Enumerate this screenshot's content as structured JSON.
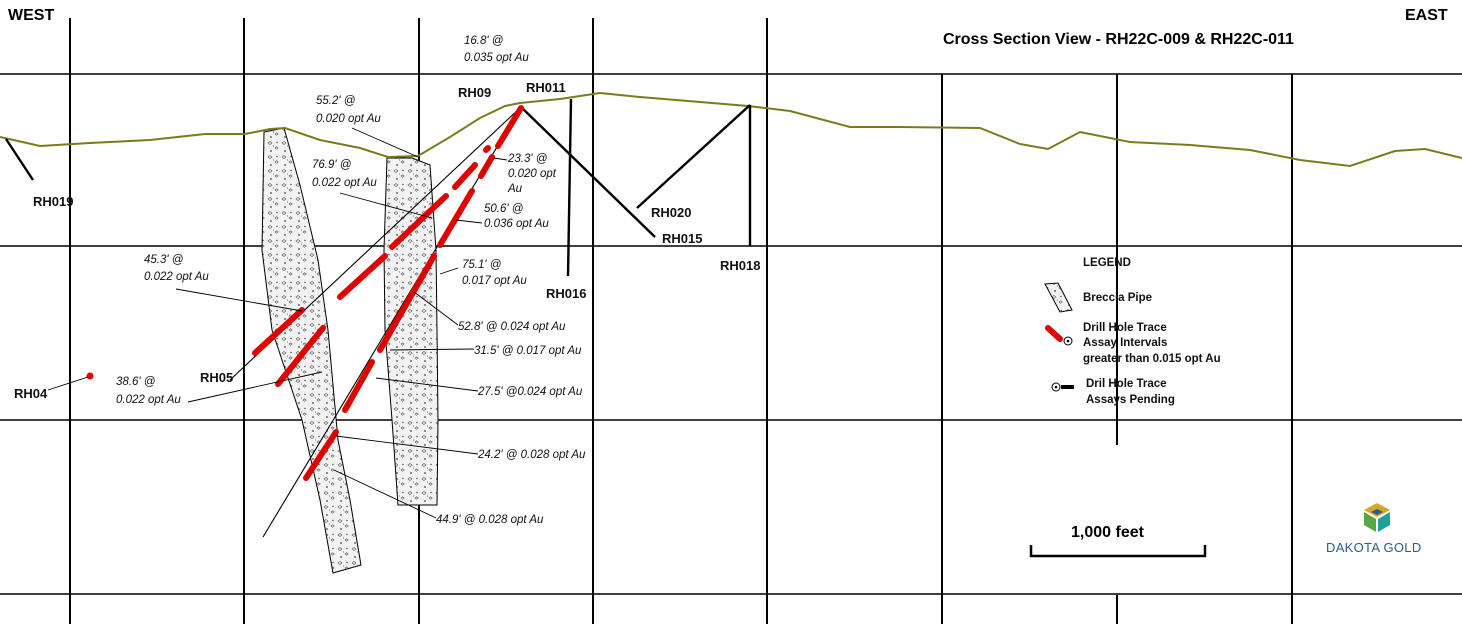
{
  "header": {
    "west": "WEST",
    "east": "EAST",
    "title": "Cross Section View - RH22C-009 & RH22C-011"
  },
  "holes": {
    "rh019": "RH019",
    "rh09": "RH09",
    "rh011": "RH011",
    "rh016": "RH016",
    "rh020": "RH020",
    "rh015": "RH015",
    "rh018": "RH018",
    "rh05": "RH05",
    "rh04": "RH04"
  },
  "intervals": {
    "i1": {
      "l1": "16.8' @",
      "l2": "0.035 opt Au"
    },
    "i2": {
      "l1": "55.2' @",
      "l2": "0.020 opt Au"
    },
    "i3": {
      "l1": "76.9' @",
      "l2": "0.022 opt Au"
    },
    "i4": {
      "l1": "23.3' @",
      "l2": "0.020 opt",
      "l3": "Au"
    },
    "i5": {
      "l1": "50.6' @",
      "l2": "0.036 opt Au"
    },
    "i6": {
      "l1": "45.3' @",
      "l2": "0.022 opt Au"
    },
    "i7": {
      "l1": "75.1' @",
      "l2": "0.017 opt Au"
    },
    "i8": "52.8' @ 0.024 opt Au",
    "i9": "31.5' @ 0.017 opt Au",
    "i10": {
      "l1": "38.6' @",
      "l2": "0.022 opt Au"
    },
    "i11": "27.5' @0.024 opt Au",
    "i12": "24.2' @ 0.028 opt Au",
    "i13": "44.9' @ 0.028 opt Au"
  },
  "legend": {
    "title": "LEGEND",
    "breccia": "Breccia Pipe",
    "assay_l1": "Drill Hole Trace",
    "assay_l2": "Assay Intervals",
    "assay_l3": "greater than 0.015 opt Au",
    "pending_l1": "Dril Hole Trace",
    "pending_l2": "Assays Pending"
  },
  "scale_bar": {
    "label": "1,000 feet"
  },
  "logo": {
    "text": "DAKOTA GOLD"
  },
  "colors": {
    "topography": "#7d7a1e",
    "assay": "#e00000",
    "trace": "#000000",
    "logo_blue": "#2a5d8a",
    "logo_green": "#5aa646",
    "logo_teal": "#1f9e9a",
    "logo_gold": "#d4a92a"
  }
}
